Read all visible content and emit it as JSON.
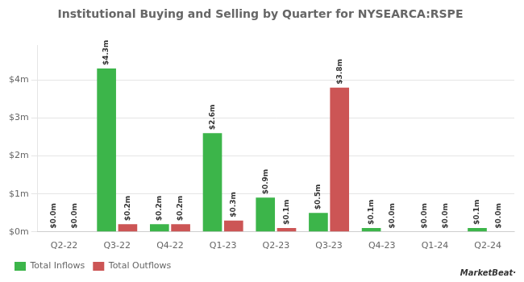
{
  "chart_data": {
    "type": "bar",
    "title": "Institutional Buying and Selling by Quarter for NYSEARCA:RSPE",
    "categories": [
      "Q2-22",
      "Q3-22",
      "Q4-22",
      "Q1-23",
      "Q2-23",
      "Q3-23",
      "Q4-23",
      "Q1-24",
      "Q2-24"
    ],
    "series": [
      {
        "name": "Total Inflows",
        "color": "#3cb54a",
        "values": [
          0.0,
          4.3,
          0.2,
          2.6,
          0.9,
          0.5,
          0.1,
          0.0,
          0.1
        ],
        "value_labels": [
          "$0.0m",
          "$4.3m",
          "$0.2m",
          "$2.6m",
          "$0.9m",
          "$0.5m",
          "$0.1m",
          "$0.0m",
          "$0.1m"
        ]
      },
      {
        "name": "Total Outflows",
        "color": "#cc5555",
        "values": [
          0.0,
          0.2,
          0.2,
          0.3,
          0.1,
          3.8,
          0.0,
          0.0,
          0.0
        ],
        "value_labels": [
          "$0.0m",
          "$0.2m",
          "$0.2m",
          "$0.3m",
          "$0.1m",
          "$3.8m",
          "$0.0m",
          "$0.0m",
          "$0.0m"
        ]
      }
    ],
    "ylim": [
      0,
      4.9
    ],
    "yticks": [
      {
        "value": 0,
        "label": "$0m"
      },
      {
        "value": 1,
        "label": "$1m"
      },
      {
        "value": 2,
        "label": "$2m"
      },
      {
        "value": 3,
        "label": "$3m"
      },
      {
        "value": 4,
        "label": "$4m"
      }
    ],
    "grid": true,
    "legend": "lower left",
    "data_labels": true,
    "annotations": [
      "MarketBeat·"
    ]
  }
}
